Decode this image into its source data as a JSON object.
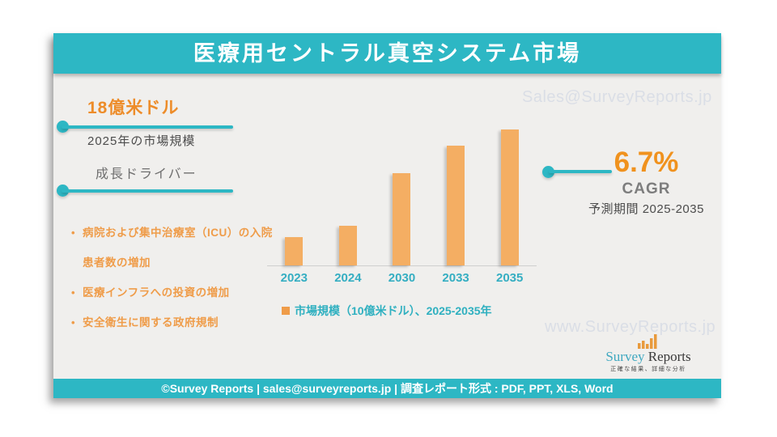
{
  "header": {
    "title": "医療用セントラル真空システム市場"
  },
  "left_panel": {
    "market_value": "18億米ドル",
    "market_value_caption": "2025年の市場規模",
    "drivers_heading": "成長ドライバー",
    "drivers": [
      "病院および集中治療室（ICU）の入院患者数の増加",
      "医療インフラへの投資の増加",
      "安全衛生に関する政府規制"
    ]
  },
  "chart_data": {
    "type": "bar",
    "title": "医療用セントラル真空システム市場",
    "categories": [
      "2023",
      "2024",
      "2030",
      "2033",
      "2035"
    ],
    "values": [
      0.7,
      1.0,
      2.3,
      3.0,
      3.4
    ],
    "values_note": "estimated from bar heights, units of 10億米ドル (billion USD)",
    "legend": "市場規模（10億米ドル）、2025-2035年",
    "xlabel": "",
    "ylabel": "",
    "ylim": [
      0,
      3.6
    ],
    "grid": false,
    "legend_position": "bottom",
    "bar_color": "#f4ae63",
    "tick_color": "#35aec2"
  },
  "right_panel": {
    "cagr_value": "6.7%",
    "cagr_label": "CAGR",
    "forecast_period": "予測期間 2025-2035"
  },
  "watermarks": {
    "top": "Sales@SurveyReports.jp",
    "bottom": "www.SurveyReports.jp"
  },
  "logo": {
    "name_part1": "Survey",
    "name_part2": " Reports",
    "tagline": "正確な結果、詳細な分析"
  },
  "footer": {
    "text": "©Survey Reports | sales@surveyreports.jp |  調査レポート形式 : PDF, PPT, XLS, Word"
  },
  "colors": {
    "teal": "#2db7c4",
    "orange_accent": "#ed8c29",
    "orange_bar": "#f4ae63",
    "cagr_orange": "#f0921e",
    "card_bg": "#f0efed",
    "watermark": "#dadee6"
  }
}
